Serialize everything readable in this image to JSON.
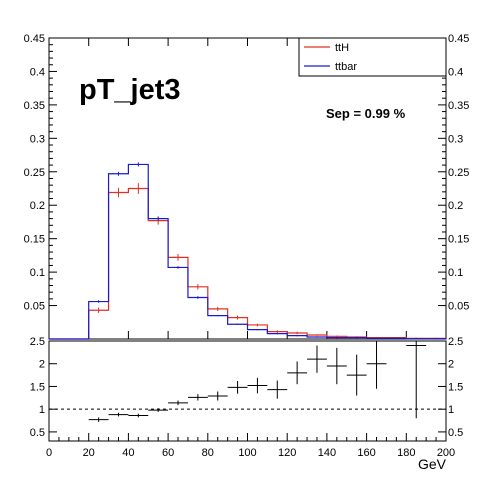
{
  "chart_data": [
    {
      "panel": "top",
      "type": "step-histogram",
      "title": "pT_jet3",
      "annotation": "Sep = 0.99 %",
      "legend": {
        "position": "top-right",
        "entries": [
          "ttH",
          "ttbar"
        ]
      },
      "xlim": [
        0,
        200
      ],
      "ylim": [
        0,
        0.45
      ],
      "yticks": [
        "0.05",
        "0.1",
        "0.15",
        "0.2",
        "0.25",
        "0.3",
        "0.35",
        "0.4",
        "0.45"
      ],
      "bin_edges": [
        0,
        10,
        20,
        30,
        40,
        50,
        60,
        70,
        80,
        90,
        100,
        110,
        120,
        130,
        140,
        150,
        160,
        170,
        180,
        190,
        200
      ],
      "series": [
        {
          "name": "ttH",
          "color": "#e03020",
          "values": [
            0,
            0,
            0.043,
            0.219,
            0.225,
            0.177,
            0.122,
            0.078,
            0.045,
            0.032,
            0.021,
            0.011,
            0.009,
            0.006,
            0.004,
            0.003,
            0.002,
            0.002,
            0.001,
            0.001
          ],
          "errors": [
            0,
            0,
            0.004,
            0.007,
            0.008,
            0.006,
            0.005,
            0.004,
            0.003,
            0.003,
            0.002,
            0.002,
            0.002,
            0.001,
            0.001,
            0.001,
            0.001,
            0.001,
            0.001,
            0.001
          ]
        },
        {
          "name": "ttbar",
          "color": "#1a1ad0",
          "values": [
            0,
            0,
            0.056,
            0.247,
            0.261,
            0.18,
            0.107,
            0.062,
            0.035,
            0.022,
            0.014,
            0.008,
            0.005,
            0.003,
            0.002,
            0.002,
            0.001,
            0.001,
            0.0005,
            0.0005
          ],
          "errors": [
            0,
            0,
            0.002,
            0.003,
            0.003,
            0.003,
            0.002,
            0.002,
            0.001,
            0.001,
            0.001,
            0.001,
            0.001,
            0.001,
            0.001,
            0.001,
            0.001,
            0.001,
            0.001,
            0.001
          ]
        }
      ]
    },
    {
      "panel": "ratio",
      "type": "errorbar",
      "xlabel": "GeV",
      "xlim": [
        0,
        200
      ],
      "ylim": [
        0.3,
        2.5
      ],
      "reference_line": 1,
      "xticks": [
        "0",
        "20",
        "40",
        "60",
        "80",
        "100",
        "120",
        "140",
        "160",
        "180",
        "200"
      ],
      "yticks": [
        "0.5",
        "1",
        "1.5",
        "2",
        "2.5"
      ],
      "x": [
        25,
        35,
        45,
        55,
        65,
        75,
        85,
        95,
        105,
        115,
        125,
        135,
        145,
        155,
        165,
        185
      ],
      "y": [
        0.77,
        0.88,
        0.86,
        0.98,
        1.14,
        1.26,
        1.29,
        1.48,
        1.52,
        1.43,
        1.8,
        2.1,
        1.95,
        1.75,
        2.0,
        2.4
      ],
      "yerr": [
        0.05,
        0.04,
        0.04,
        0.04,
        0.05,
        0.07,
        0.1,
        0.14,
        0.17,
        0.2,
        0.25,
        0.3,
        0.4,
        0.45,
        0.55,
        1.6
      ]
    }
  ]
}
